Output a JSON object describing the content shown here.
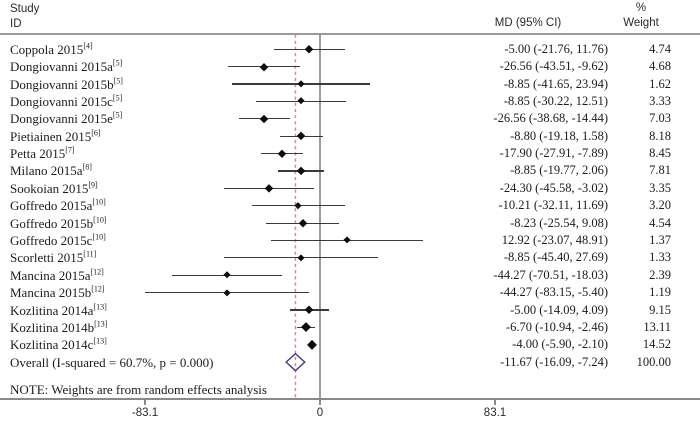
{
  "header": {
    "col_study_line1": "Study",
    "col_study_line2": "ID",
    "col_md": "MD (95% CI)",
    "col_weight_line1": "%",
    "col_weight_line2": "Weight"
  },
  "note": "NOTE: Weights are from random effects analysis",
  "colors": {
    "ci_line": "#3a3a3a",
    "marker": "#0d0d0d",
    "overall_diamond_outline": "#3a3a8c",
    "zero_line": "#8a8a8a",
    "overall_ref_line": "#cf9090",
    "rule": "#9a9a9a"
  },
  "chart_data": {
    "type": "forest",
    "effect_measure": "MD",
    "studies": [
      {
        "label": "Coppola 2015",
        "ref": "[4]",
        "md": -5.0,
        "ci": [
          -21.76,
          11.76
        ],
        "md_text": "-5.00 (-21.76, 11.76)",
        "weight": "4.74"
      },
      {
        "label": "Dongiovanni 2015a",
        "ref": "[5]",
        "md": -26.56,
        "ci": [
          -43.51,
          -9.62
        ],
        "md_text": "-26.56 (-43.51, -9.62)",
        "weight": "4.68"
      },
      {
        "label": "Dongiovanni 2015b",
        "ref": "[5]",
        "md": -8.85,
        "ci": [
          -41.65,
          23.94
        ],
        "md_text": "-8.85 (-41.65, 23.94)",
        "weight": "1.62"
      },
      {
        "label": "Dongiovanni 2015c",
        "ref": "[5]",
        "md": -8.85,
        "ci": [
          -30.22,
          12.51
        ],
        "md_text": "-8.85 (-30.22, 12.51)",
        "weight": "3.33"
      },
      {
        "label": "Dongiovanni 2015e",
        "ref": "[5]",
        "md": -26.56,
        "ci": [
          -38.68,
          -14.44
        ],
        "md_text": "-26.56 (-38.68, -14.44)",
        "weight": "7.03"
      },
      {
        "label": "Pietiainen 2015",
        "ref": "[6]",
        "md": -8.8,
        "ci": [
          -19.18,
          1.58
        ],
        "md_text": "-8.80 (-19.18, 1.58)",
        "weight": "8.18"
      },
      {
        "label": "Petta 2015",
        "ref": "[7]",
        "md": -17.9,
        "ci": [
          -27.91,
          -7.89
        ],
        "md_text": "-17.90 (-27.91, -7.89)",
        "weight": "8.45"
      },
      {
        "label": "Milano 2015a",
        "ref": "[8]",
        "md": -8.85,
        "ci": [
          -19.77,
          2.06
        ],
        "md_text": "-8.85 (-19.77, 2.06)",
        "weight": "7.81"
      },
      {
        "label": "Sookoian 2015",
        "ref": "[9]",
        "md": -24.3,
        "ci": [
          -45.58,
          -3.02
        ],
        "md_text": "-24.30 (-45.58, -3.02)",
        "weight": "3.35"
      },
      {
        "label": "Goffredo 2015a",
        "ref": "[10]",
        "md": -10.21,
        "ci": [
          -32.11,
          11.69
        ],
        "md_text": "-10.21 (-32.11, 11.69)",
        "weight": "3.20"
      },
      {
        "label": "Goffredo 2015b",
        "ref": "[10]",
        "md": -8.23,
        "ci": [
          -25.54,
          9.08
        ],
        "md_text": "-8.23 (-25.54, 9.08)",
        "weight": "4.54"
      },
      {
        "label": "Goffredo 2015c",
        "ref": "[10]",
        "md": 12.92,
        "ci": [
          -23.07,
          48.91
        ],
        "md_text": "12.92 (-23.07, 48.91)",
        "weight": "1.37"
      },
      {
        "label": "Scorletti 2015",
        "ref": "[11]",
        "md": -8.85,
        "ci": [
          -45.4,
          27.69
        ],
        "md_text": "-8.85 (-45.40, 27.69)",
        "weight": "1.33"
      },
      {
        "label": "Mancina 2015a",
        "ref": "[12]",
        "md": -44.27,
        "ci": [
          -70.51,
          -18.03
        ],
        "md_text": "-44.27 (-70.51, -18.03)",
        "weight": "2.39"
      },
      {
        "label": "Mancina 2015b",
        "ref": "[12]",
        "md": -44.27,
        "ci": [
          -83.15,
          -5.4
        ],
        "md_text": "-44.27 (-83.15, -5.40)",
        "weight": "1.19"
      },
      {
        "label": "Kozlitina 2014a",
        "ref": "[13]",
        "md": -5.0,
        "ci": [
          -14.09,
          4.09
        ],
        "md_text": "-5.00 (-14.09, 4.09)",
        "weight": "9.15"
      },
      {
        "label": "Kozlitina 2014b",
        "ref": "[13]",
        "md": -6.7,
        "ci": [
          -10.94,
          -2.46
        ],
        "md_text": "-6.70 (-10.94, -2.46)",
        "weight": "13.11"
      },
      {
        "label": "Kozlitina 2014c",
        "ref": "[13]",
        "md": -4.0,
        "ci": [
          -5.9,
          -2.1
        ],
        "md_text": "-4.00 (-5.90, -2.10)",
        "weight": "14.52"
      }
    ],
    "overall": {
      "label": "Overall  (I-squared = 60.7%, p = 0.000)",
      "md": -11.67,
      "ci": [
        -16.09,
        -7.24
      ],
      "md_text": "-11.67 (-16.09, -7.24)",
      "weight": "100.00"
    },
    "axis": {
      "ticks": [
        {
          "value": -83.1,
          "label": "-83.1"
        },
        {
          "value": 0,
          "label": "0"
        },
        {
          "value": 83.1,
          "label": "83.1"
        }
      ],
      "xlim": [
        -83.1,
        83.1
      ]
    }
  }
}
